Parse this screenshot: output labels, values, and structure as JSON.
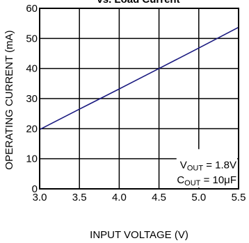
{
  "chart_data": {
    "type": "line",
    "title": "vs. Load Current",
    "xlabel": "INPUT VOLTAGE (V)",
    "ylabel": "OPERATING CURRENT (mA)",
    "xlim": [
      3.0,
      5.5
    ],
    "ylim": [
      0,
      60
    ],
    "x_ticks": [
      "3.0",
      "3.5",
      "4.0",
      "4.5",
      "5.0",
      "5.5"
    ],
    "y_ticks": [
      "0",
      "10",
      "20",
      "30",
      "40",
      "50",
      "60"
    ],
    "grid": true,
    "series": [
      {
        "x": [
          3.0,
          3.5,
          4.0,
          4.5,
          5.0,
          5.5
        ],
        "y": [
          19.7,
          26.5,
          33.2,
          40.0,
          46.8,
          53.7
        ]
      }
    ],
    "annotations": [
      {
        "prefix": "V",
        "sub": "OUT",
        "value": " = 1.8V"
      },
      {
        "prefix": "C",
        "sub": "OUT",
        "value": " = 10μF"
      }
    ],
    "colors": {
      "series": "#1a1a80",
      "grid": "#000000",
      "background": "#ffffff"
    }
  }
}
